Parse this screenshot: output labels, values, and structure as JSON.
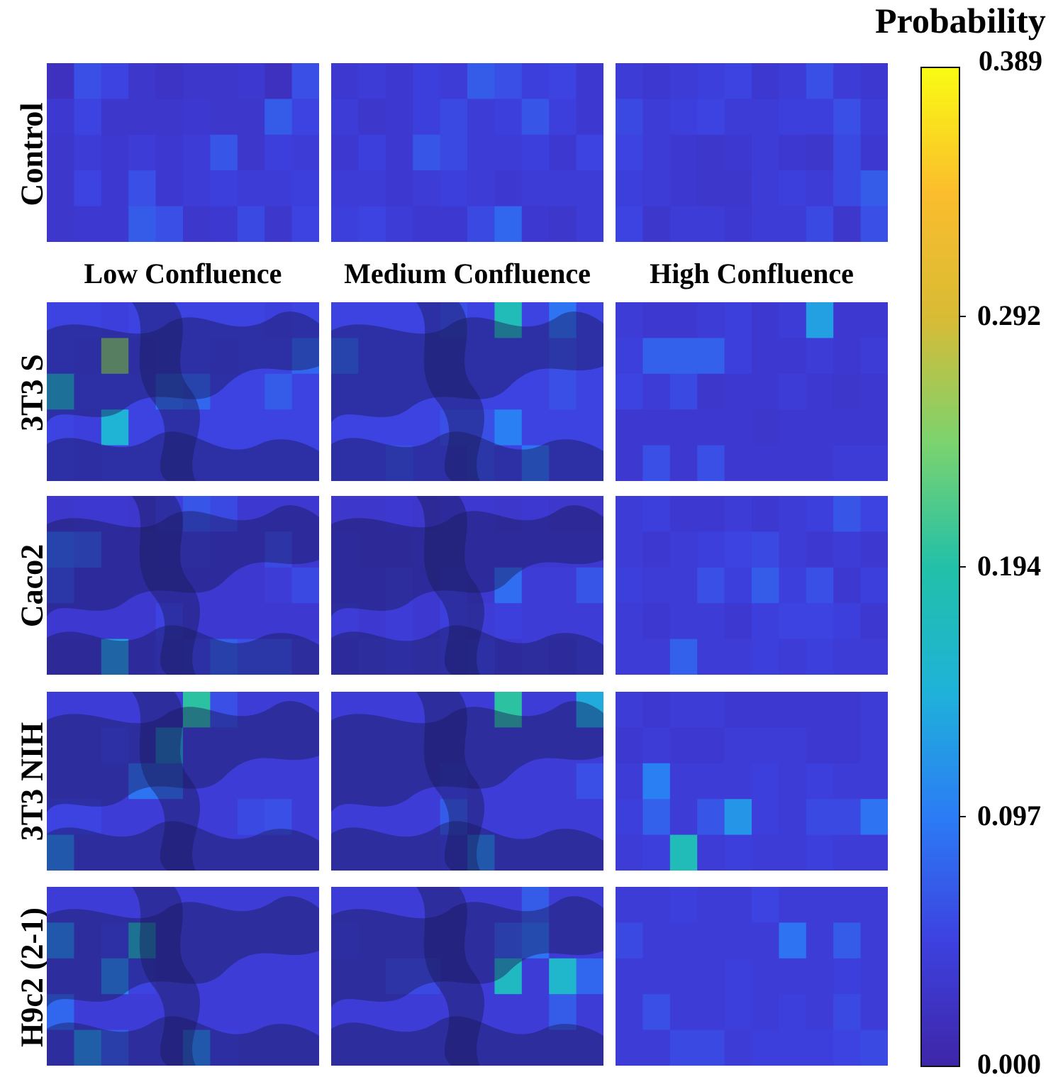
{
  "chart_data": {
    "type": "heatmap",
    "colorbar": {
      "title": "Probability",
      "ticks": [
        "0.389",
        "0.292",
        "0.194",
        "0.097",
        "0.000"
      ],
      "range": [
        0.0,
        0.389
      ],
      "colormap": [
        "#3e26a8",
        "#3d41e0",
        "#2b7cf5",
        "#1fb2d9",
        "#22c0a8",
        "#7cd36e",
        "#d8bb35",
        "#fbbd2d",
        "#f9fb14"
      ]
    },
    "row_labels": [
      "Control",
      "3T3 S",
      "Caco2",
      "3T3 NIH",
      "H9c2 (2-1)"
    ],
    "column_labels": [
      "Low Confluence",
      "Medium Confluence",
      "High Confluence"
    ],
    "grid": {
      "rows": 5,
      "cols": 10
    },
    "panels": [
      {
        "row": "Control",
        "column": "Low Confluence",
        "overlay": false,
        "values": [
          [
            0.02,
            0.06,
            0.05,
            0.03,
            0.025,
            0.03,
            0.03,
            0.035,
            0.02,
            0.06
          ],
          [
            0.035,
            0.05,
            0.03,
            0.03,
            0.03,
            0.035,
            0.03,
            0.03,
            0.07,
            0.05
          ],
          [
            0.03,
            0.04,
            0.035,
            0.04,
            0.035,
            0.04,
            0.065,
            0.03,
            0.045,
            0.04
          ],
          [
            0.03,
            0.05,
            0.035,
            0.06,
            0.035,
            0.04,
            0.045,
            0.04,
            0.04,
            0.045
          ],
          [
            0.03,
            0.035,
            0.035,
            0.07,
            0.06,
            0.03,
            0.035,
            0.055,
            0.03,
            0.05
          ]
        ]
      },
      {
        "row": "Control",
        "column": "Medium Confluence",
        "overlay": false,
        "values": [
          [
            0.035,
            0.04,
            0.035,
            0.045,
            0.04,
            0.07,
            0.06,
            0.045,
            0.05,
            0.035
          ],
          [
            0.04,
            0.03,
            0.035,
            0.045,
            0.055,
            0.04,
            0.045,
            0.065,
            0.045,
            0.035
          ],
          [
            0.035,
            0.045,
            0.035,
            0.065,
            0.055,
            0.04,
            0.04,
            0.045,
            0.035,
            0.05
          ],
          [
            0.04,
            0.04,
            0.035,
            0.04,
            0.045,
            0.04,
            0.035,
            0.04,
            0.04,
            0.04
          ],
          [
            0.045,
            0.05,
            0.04,
            0.035,
            0.035,
            0.055,
            0.08,
            0.035,
            0.03,
            0.04
          ]
        ]
      },
      {
        "row": "Control",
        "column": "High Confluence",
        "overlay": false,
        "values": [
          [
            0.04,
            0.035,
            0.04,
            0.045,
            0.05,
            0.035,
            0.04,
            0.06,
            0.04,
            0.035
          ],
          [
            0.055,
            0.04,
            0.045,
            0.05,
            0.04,
            0.04,
            0.045,
            0.045,
            0.06,
            0.04
          ],
          [
            0.05,
            0.04,
            0.035,
            0.03,
            0.035,
            0.04,
            0.035,
            0.03,
            0.055,
            0.035
          ],
          [
            0.045,
            0.04,
            0.035,
            0.03,
            0.03,
            0.04,
            0.045,
            0.04,
            0.055,
            0.07
          ],
          [
            0.05,
            0.03,
            0.04,
            0.04,
            0.035,
            0.04,
            0.04,
            0.055,
            0.03,
            0.06
          ]
        ]
      },
      {
        "row": "3T3 S",
        "column": "Low Confluence",
        "overlay": true,
        "values": [
          [
            0.05,
            0.05,
            0.045,
            0.05,
            0.05,
            0.05,
            0.05,
            0.05,
            0.045,
            0.05
          ],
          [
            0.05,
            0.045,
            0.25,
            0.045,
            0.05,
            0.05,
            0.045,
            0.05,
            0.05,
            0.08
          ],
          [
            0.16,
            0.05,
            0.05,
            0.05,
            0.09,
            0.08,
            0.05,
            0.05,
            0.07,
            0.05
          ],
          [
            0.05,
            0.045,
            0.15,
            0.05,
            0.05,
            0.05,
            0.05,
            0.05,
            0.05,
            0.05
          ],
          [
            0.05,
            0.045,
            0.05,
            0.05,
            0.05,
            0.05,
            0.05,
            0.05,
            0.05,
            0.05
          ]
        ]
      },
      {
        "row": "3T3 S",
        "column": "Medium Confluence",
        "overlay": true,
        "values": [
          [
            0.05,
            0.05,
            0.05,
            0.05,
            0.06,
            0.05,
            0.18,
            0.05,
            0.09,
            0.05
          ],
          [
            0.08,
            0.05,
            0.05,
            0.05,
            0.05,
            0.05,
            0.05,
            0.05,
            0.06,
            0.05
          ],
          [
            0.05,
            0.05,
            0.05,
            0.05,
            0.05,
            0.05,
            0.05,
            0.05,
            0.06,
            0.05
          ],
          [
            0.05,
            0.05,
            0.05,
            0.05,
            0.06,
            0.06,
            0.1,
            0.05,
            0.05,
            0.05
          ],
          [
            0.05,
            0.05,
            0.06,
            0.05,
            0.05,
            0.06,
            0.05,
            0.09,
            0.05,
            0.05
          ]
        ]
      },
      {
        "row": "3T3 S",
        "column": "High Confluence",
        "overlay": false,
        "values": [
          [
            0.04,
            0.035,
            0.035,
            0.04,
            0.045,
            0.035,
            0.04,
            0.13,
            0.035,
            0.035
          ],
          [
            0.045,
            0.075,
            0.075,
            0.075,
            0.045,
            0.035,
            0.035,
            0.04,
            0.035,
            0.04
          ],
          [
            0.05,
            0.04,
            0.055,
            0.03,
            0.035,
            0.035,
            0.04,
            0.035,
            0.03,
            0.035
          ],
          [
            0.035,
            0.035,
            0.035,
            0.035,
            0.035,
            0.03,
            0.035,
            0.035,
            0.035,
            0.035
          ],
          [
            0.035,
            0.06,
            0.035,
            0.06,
            0.035,
            0.035,
            0.035,
            0.035,
            0.04,
            0.04
          ]
        ]
      },
      {
        "row": "Caco2",
        "column": "Low Confluence",
        "overlay": true,
        "values": [
          [
            0.03,
            0.035,
            0.035,
            0.03,
            0.045,
            0.065,
            0.055,
            0.035,
            0.035,
            0.035
          ],
          [
            0.08,
            0.07,
            0.035,
            0.035,
            0.04,
            0.04,
            0.035,
            0.035,
            0.055,
            0.035
          ],
          [
            0.06,
            0.035,
            0.035,
            0.035,
            0.035,
            0.035,
            0.035,
            0.035,
            0.04,
            0.055
          ],
          [
            0.035,
            0.035,
            0.035,
            0.035,
            0.05,
            0.035,
            0.035,
            0.035,
            0.035,
            0.035
          ],
          [
            0.03,
            0.03,
            0.13,
            0.035,
            0.045,
            0.05,
            0.075,
            0.06,
            0.06,
            0.04
          ]
        ]
      },
      {
        "row": "Caco2",
        "column": "Medium Confluence",
        "overlay": true,
        "values": [
          [
            0.03,
            0.03,
            0.035,
            0.03,
            0.035,
            0.035,
            0.03,
            0.035,
            0.03,
            0.03
          ],
          [
            0.035,
            0.03,
            0.03,
            0.035,
            0.035,
            0.035,
            0.035,
            0.035,
            0.035,
            0.035
          ],
          [
            0.035,
            0.035,
            0.04,
            0.035,
            0.045,
            0.035,
            0.085,
            0.04,
            0.04,
            0.065
          ],
          [
            0.04,
            0.035,
            0.04,
            0.035,
            0.045,
            0.04,
            0.045,
            0.04,
            0.04,
            0.04
          ],
          [
            0.035,
            0.04,
            0.045,
            0.04,
            0.045,
            0.05,
            0.035,
            0.04,
            0.035,
            0.045
          ]
        ]
      },
      {
        "row": "Caco2",
        "column": "High Confluence",
        "overlay": false,
        "values": [
          [
            0.04,
            0.045,
            0.035,
            0.035,
            0.04,
            0.035,
            0.04,
            0.045,
            0.065,
            0.05
          ],
          [
            0.04,
            0.035,
            0.04,
            0.045,
            0.05,
            0.055,
            0.04,
            0.035,
            0.04,
            0.035
          ],
          [
            0.045,
            0.04,
            0.04,
            0.06,
            0.045,
            0.07,
            0.045,
            0.06,
            0.035,
            0.045
          ],
          [
            0.04,
            0.035,
            0.04,
            0.04,
            0.035,
            0.045,
            0.05,
            0.05,
            0.045,
            0.035
          ],
          [
            0.04,
            0.04,
            0.075,
            0.04,
            0.04,
            0.045,
            0.04,
            0.045,
            0.04,
            0.04
          ]
        ]
      },
      {
        "row": "3T3 NIH",
        "column": "Low Confluence",
        "overlay": true,
        "values": [
          [
            0.04,
            0.04,
            0.04,
            0.04,
            0.04,
            0.2,
            0.06,
            0.04,
            0.04,
            0.04
          ],
          [
            0.04,
            0.04,
            0.05,
            0.04,
            0.15,
            0.04,
            0.04,
            0.04,
            0.04,
            0.04
          ],
          [
            0.04,
            0.04,
            0.04,
            0.09,
            0.09,
            0.04,
            0.04,
            0.04,
            0.04,
            0.04
          ],
          [
            0.05,
            0.05,
            0.04,
            0.04,
            0.04,
            0.04,
            0.04,
            0.055,
            0.06,
            0.04
          ],
          [
            0.11,
            0.04,
            0.04,
            0.04,
            0.04,
            0.04,
            0.04,
            0.04,
            0.04,
            0.04
          ]
        ]
      },
      {
        "row": "3T3 NIH",
        "column": "Medium Confluence",
        "overlay": true,
        "values": [
          [
            0.04,
            0.04,
            0.04,
            0.04,
            0.04,
            0.04,
            0.2,
            0.04,
            0.04,
            0.14
          ],
          [
            0.04,
            0.04,
            0.04,
            0.04,
            0.04,
            0.04,
            0.04,
            0.04,
            0.04,
            0.04
          ],
          [
            0.04,
            0.04,
            0.04,
            0.04,
            0.05,
            0.04,
            0.04,
            0.04,
            0.04,
            0.06
          ],
          [
            0.04,
            0.04,
            0.04,
            0.04,
            0.07,
            0.04,
            0.04,
            0.04,
            0.04,
            0.04
          ],
          [
            0.04,
            0.04,
            0.04,
            0.04,
            0.045,
            0.11,
            0.04,
            0.04,
            0.04,
            0.04
          ]
        ]
      },
      {
        "row": "3T3 NIH",
        "column": "High Confluence",
        "overlay": false,
        "values": [
          [
            0.04,
            0.035,
            0.04,
            0.04,
            0.035,
            0.035,
            0.035,
            0.035,
            0.035,
            0.04
          ],
          [
            0.035,
            0.04,
            0.035,
            0.035,
            0.04,
            0.04,
            0.04,
            0.035,
            0.035,
            0.04
          ],
          [
            0.04,
            0.1,
            0.04,
            0.04,
            0.04,
            0.045,
            0.04,
            0.045,
            0.04,
            0.04
          ],
          [
            0.045,
            0.075,
            0.04,
            0.065,
            0.12,
            0.045,
            0.04,
            0.055,
            0.055,
            0.09
          ],
          [
            0.04,
            0.045,
            0.18,
            0.04,
            0.045,
            0.04,
            0.04,
            0.045,
            0.04,
            0.04
          ]
        ]
      },
      {
        "row": "H9c2 (2-1)",
        "column": "Low Confluence",
        "overlay": true,
        "values": [
          [
            0.04,
            0.04,
            0.04,
            0.04,
            0.04,
            0.04,
            0.04,
            0.04,
            0.04,
            0.04
          ],
          [
            0.11,
            0.04,
            0.05,
            0.17,
            0.04,
            0.04,
            0.04,
            0.04,
            0.04,
            0.04
          ],
          [
            0.04,
            0.04,
            0.11,
            0.05,
            0.04,
            0.04,
            0.04,
            0.04,
            0.04,
            0.04
          ],
          [
            0.08,
            0.04,
            0.04,
            0.04,
            0.04,
            0.04,
            0.04,
            0.04,
            0.04,
            0.04
          ],
          [
            0.04,
            0.12,
            0.07,
            0.04,
            0.04,
            0.11,
            0.045,
            0.04,
            0.04,
            0.04
          ]
        ]
      },
      {
        "row": "H9c2 (2-1)",
        "column": "Medium Confluence",
        "overlay": true,
        "values": [
          [
            0.04,
            0.04,
            0.04,
            0.04,
            0.04,
            0.04,
            0.04,
            0.07,
            0.04,
            0.04
          ],
          [
            0.045,
            0.04,
            0.04,
            0.04,
            0.04,
            0.04,
            0.07,
            0.09,
            0.04,
            0.04
          ],
          [
            0.04,
            0.04,
            0.055,
            0.055,
            0.04,
            0.04,
            0.17,
            0.04,
            0.16,
            0.08
          ],
          [
            0.04,
            0.04,
            0.04,
            0.04,
            0.04,
            0.04,
            0.04,
            0.04,
            0.07,
            0.04
          ],
          [
            0.04,
            0.04,
            0.04,
            0.04,
            0.04,
            0.04,
            0.04,
            0.04,
            0.04,
            0.04
          ]
        ]
      },
      {
        "row": "H9c2 (2-1)",
        "column": "High Confluence",
        "overlay": false,
        "values": [
          [
            0.04,
            0.04,
            0.045,
            0.04,
            0.04,
            0.05,
            0.04,
            0.04,
            0.04,
            0.04
          ],
          [
            0.055,
            0.04,
            0.04,
            0.04,
            0.04,
            0.04,
            0.09,
            0.04,
            0.07,
            0.04
          ],
          [
            0.04,
            0.04,
            0.04,
            0.04,
            0.045,
            0.04,
            0.04,
            0.04,
            0.045,
            0.04
          ],
          [
            0.04,
            0.06,
            0.04,
            0.04,
            0.045,
            0.04,
            0.045,
            0.04,
            0.055,
            0.04
          ],
          [
            0.04,
            0.04,
            0.055,
            0.055,
            0.04,
            0.045,
            0.045,
            0.045,
            0.05,
            0.055
          ]
        ]
      }
    ]
  }
}
